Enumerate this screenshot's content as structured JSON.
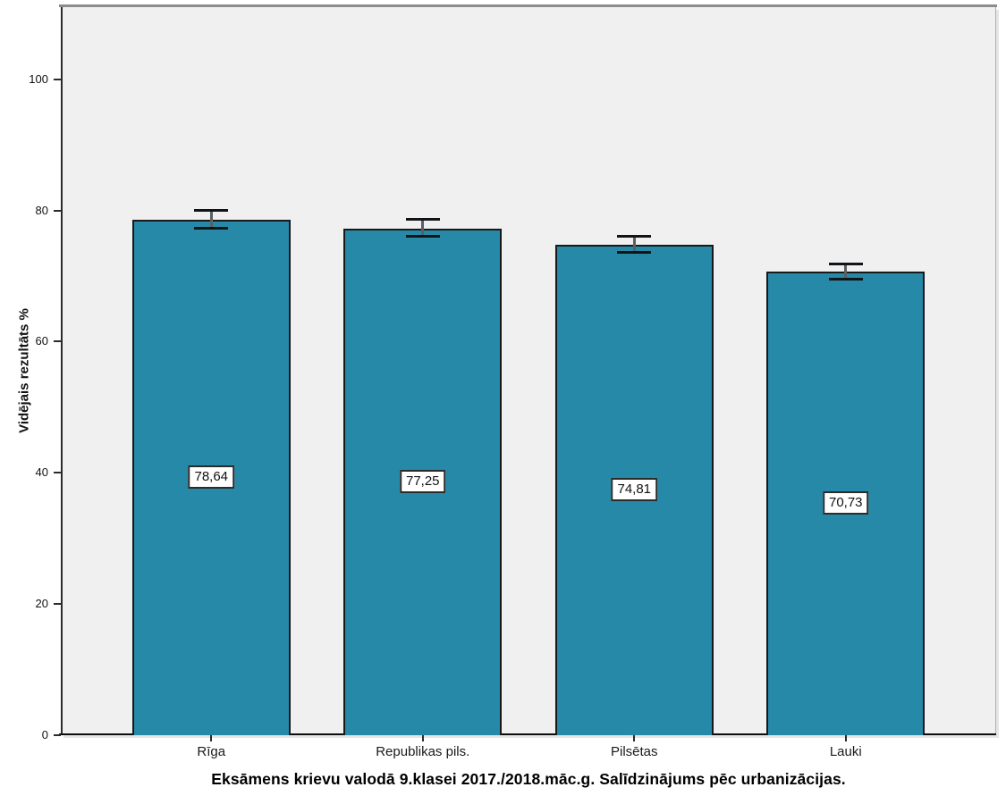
{
  "chart_data": {
    "type": "bar",
    "title": "Eksāmens krievu valodā 9.klasei 2017./2018.māc.g. Salīdzinājums pēc urbanizācijas.",
    "ylabel": "Vidējais rezultāts %",
    "xlabel": "",
    "categories": [
      "Rīga",
      "Republikas pils.",
      "Pilsētas",
      "Lauki"
    ],
    "values": [
      78.64,
      77.25,
      74.81,
      70.73
    ],
    "value_labels": [
      "78,64",
      "77,25",
      "74,81",
      "70,73"
    ],
    "error_low": [
      77.3,
      76.0,
      73.6,
      69.5
    ],
    "error_high": [
      80.0,
      78.6,
      76.0,
      71.9
    ],
    "yticks": [
      0,
      20,
      40,
      60,
      80,
      100
    ],
    "ytick_labels": [
      "0",
      "20",
      "40",
      "60",
      "80",
      "100"
    ],
    "ylim": [
      0,
      111
    ],
    "grid": false,
    "legend_position": "none",
    "colors": {
      "bar_fill": "#2689a7",
      "bar_border": "#17191a",
      "plot_background": "#f0f0f0",
      "frame_top": "#8c8c8c",
      "error_bar": "#101416",
      "value_label_background": "#ffffff"
    }
  }
}
